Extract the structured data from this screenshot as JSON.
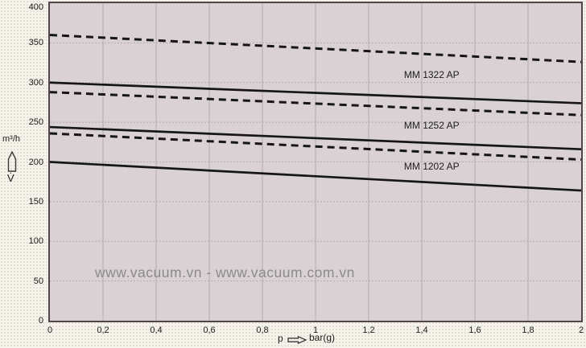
{
  "watermark": "www.vacuum.vn - www.vacuum.com.vn",
  "axis_annotations": {
    "y_unit": "m³/h",
    "y_symbol": "V̇",
    "x_symbol": "p",
    "x_unit": "bar(g)"
  },
  "colors": {
    "page_bg": "#f5f3ec",
    "plot_bg": "#d9d1d3",
    "grid": "#b5aaae",
    "border": "#53434b",
    "curve": "#161616",
    "tick_text": "#1c1c1c",
    "watermark": "#8a8a8a"
  },
  "chart_data": {
    "type": "line",
    "title": "",
    "xlabel": "p bar(g)",
    "ylabel": "V̇ m³/h",
    "xlim": [
      0,
      2
    ],
    "ylim": [
      0,
      400
    ],
    "grid": true,
    "x_tick_values": [
      0,
      0.2,
      0.4,
      0.6,
      0.8,
      1,
      1.2,
      1.4,
      1.6,
      1.8,
      2
    ],
    "x_tick_labels": [
      "0",
      "0,2",
      "0,4",
      "0,6",
      "0,8",
      "1",
      "1,2",
      "1,4",
      "1,6",
      "1,8",
      "2"
    ],
    "y_tick_values": [
      0,
      50,
      100,
      150,
      200,
      250,
      300,
      350,
      400
    ],
    "y_tick_labels": [
      "0",
      "50",
      "100",
      "150",
      "200",
      "250",
      "300",
      "350",
      "400"
    ],
    "series": [
      {
        "name": "MM 1322 AP (dashed)",
        "model": "MM 1322 AP",
        "line_style": "dashed",
        "x": [
          0,
          2
        ],
        "values": [
          360,
          326
        ]
      },
      {
        "name": "MM 1322 AP (solid)",
        "model": "MM 1322 AP",
        "line_style": "solid",
        "x": [
          0,
          2
        ],
        "values": [
          300,
          274
        ]
      },
      {
        "name": "MM 1252 AP (dashed)",
        "model": "MM 1252 AP",
        "line_style": "dashed",
        "x": [
          0,
          2
        ],
        "values": [
          288,
          259
        ]
      },
      {
        "name": "MM 1252 AP (solid)",
        "model": "MM 1252 AP",
        "line_style": "solid",
        "x": [
          0,
          2
        ],
        "values": [
          244,
          216
        ]
      },
      {
        "name": "MM 1202 AP (dashed)",
        "model": "MM 1202 AP",
        "line_style": "dashed",
        "x": [
          0,
          2
        ],
        "values": [
          236,
          203
        ]
      },
      {
        "name": "MM 1202 AP (solid)",
        "model": "MM 1202 AP",
        "line_style": "solid",
        "x": [
          0,
          2
        ],
        "values": [
          200,
          164
        ]
      }
    ],
    "curve_labels": [
      {
        "text": "MM 1322 AP",
        "p": 1.333,
        "flow": 310
      },
      {
        "text": "MM 1252 AP",
        "p": 1.333,
        "flow": 246
      },
      {
        "text": "MM 1202 AP",
        "p": 1.333,
        "flow": 194
      }
    ]
  }
}
